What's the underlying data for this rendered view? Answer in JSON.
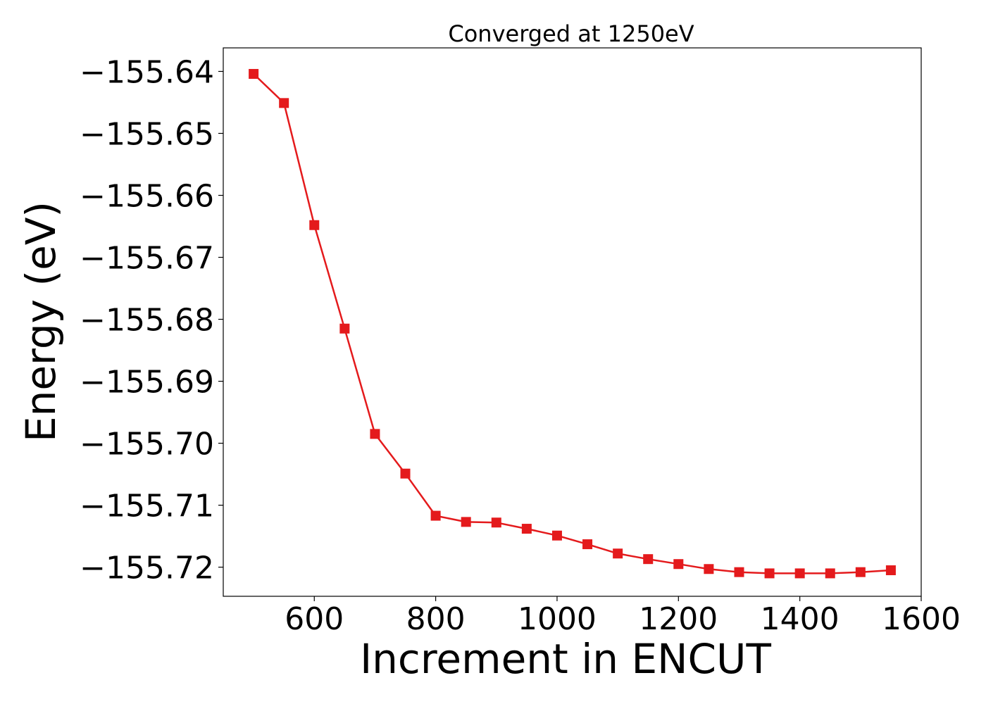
{
  "chart_data": {
    "type": "line",
    "title": "Converged at 1250eV",
    "xlabel": "Increment in ENCUT",
    "ylabel": "Energy (eV)",
    "xlim": [
      450,
      1600
    ],
    "ylim": [
      -155.7247,
      -155.6362
    ],
    "xticks": [
      600,
      800,
      1000,
      1200,
      1400,
      1600
    ],
    "yticks": [
      -155.64,
      -155.65,
      -155.66,
      -155.67,
      -155.68,
      -155.69,
      -155.7,
      -155.71,
      -155.72
    ],
    "ytick_labels": [
      "−155.64",
      "−155.65",
      "−155.66",
      "−155.67",
      "−155.68",
      "−155.69",
      "−155.70",
      "−155.71",
      "−155.72"
    ],
    "grid": false,
    "series": [
      {
        "color": "#e41a1c",
        "marker": "square",
        "x": [
          500,
          550,
          600,
          650,
          700,
          750,
          800,
          850,
          900,
          950,
          1000,
          1050,
          1100,
          1150,
          1200,
          1250,
          1300,
          1350,
          1400,
          1450,
          1500,
          1550
        ],
        "y": [
          -155.6404,
          -155.6451,
          -155.6648,
          -155.6815,
          -155.6985,
          -155.7049,
          -155.7117,
          -155.7127,
          -155.7128,
          -155.7138,
          -155.7149,
          -155.7163,
          -155.7178,
          -155.7187,
          -155.7195,
          -155.7203,
          -155.7208,
          -155.721,
          -155.721,
          -155.721,
          -155.7208,
          -155.7205
        ]
      }
    ]
  }
}
